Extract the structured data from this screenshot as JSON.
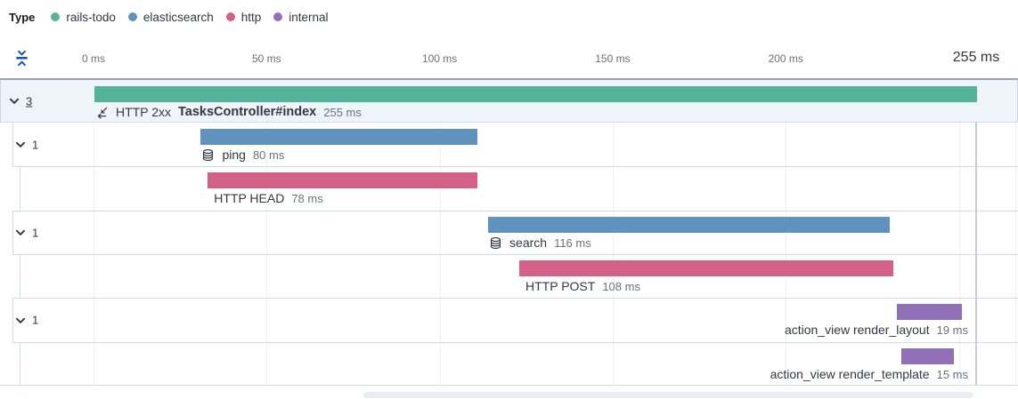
{
  "legend": {
    "title": "Type",
    "items": [
      {
        "label": "rails-todo",
        "color": "#54b399"
      },
      {
        "label": "elasticsearch",
        "color": "#6092c0"
      },
      {
        "label": "http",
        "color": "#d36086"
      },
      {
        "label": "internal",
        "color": "#9170b8"
      }
    ]
  },
  "icons": {
    "fold": "collapse-timeline-icon",
    "transaction": "transaction-merge-arrows-icon",
    "database": "database-cylinder-icon",
    "toggle": "chevron-down-icon"
  },
  "chart_data": {
    "type": "waterfall-trace-timeline",
    "x_unit": "ms",
    "xlim": [
      0,
      255
    ],
    "grid": true,
    "axis_ticks": [
      {
        "ms": 0,
        "label": "0 ms"
      },
      {
        "ms": 50,
        "label": "50 ms"
      },
      {
        "ms": 100,
        "label": "100 ms"
      },
      {
        "ms": 150,
        "label": "150 ms"
      },
      {
        "ms": 200,
        "label": "200 ms"
      }
    ],
    "end_tick": {
      "ms": 255,
      "label": "255 ms"
    },
    "gridlines_ms": [
      0,
      50,
      100,
      150,
      200,
      250
    ],
    "rows": [
      {
        "id": "transaction",
        "service_type": "rails-todo",
        "color": "#54b399",
        "level": 0,
        "selected": true,
        "toggle": {
          "count": "3"
        },
        "icon": "transaction",
        "prefix": "HTTP 2xx",
        "name": "TasksController#index",
        "duration_label": "255 ms",
        "start_ms": 0,
        "duration_ms": 255,
        "label_anchor": "left"
      },
      {
        "id": "ping",
        "service_type": "elasticsearch",
        "color": "#6092c0",
        "level": 1,
        "toggle": {
          "count": "1"
        },
        "icon": "database",
        "name": "ping",
        "duration_label": "80 ms",
        "start_ms": 31,
        "duration_ms": 80,
        "label_anchor": "left"
      },
      {
        "id": "http-head",
        "service_type": "http",
        "color": "#d36086",
        "level": 2,
        "name": "HTTP HEAD",
        "duration_label": "78 ms",
        "start_ms": 33,
        "duration_ms": 78,
        "label_anchor": "left"
      },
      {
        "id": "search",
        "service_type": "elasticsearch",
        "color": "#6092c0",
        "level": 1,
        "toggle": {
          "count": "1"
        },
        "icon": "database",
        "name": "search",
        "duration_label": "116 ms",
        "start_ms": 114,
        "duration_ms": 116,
        "label_anchor": "left"
      },
      {
        "id": "http-post",
        "service_type": "http",
        "color": "#d36086",
        "level": 2,
        "name": "HTTP POST",
        "duration_label": "108 ms",
        "start_ms": 123,
        "duration_ms": 108,
        "label_anchor": "left"
      },
      {
        "id": "render-layout",
        "service_type": "internal",
        "color": "#9170b8",
        "level": 1,
        "toggle": {
          "count": "1"
        },
        "name": "action_view render_layout",
        "duration_label": "19 ms",
        "start_ms": 232,
        "duration_ms": 19,
        "label_anchor": "right"
      },
      {
        "id": "render-template",
        "service_type": "internal",
        "color": "#9170b8",
        "level": 2,
        "name": "action_view render_template",
        "duration_label": "15 ms",
        "start_ms": 233.5,
        "duration_ms": 15,
        "label_anchor": "right"
      }
    ]
  }
}
